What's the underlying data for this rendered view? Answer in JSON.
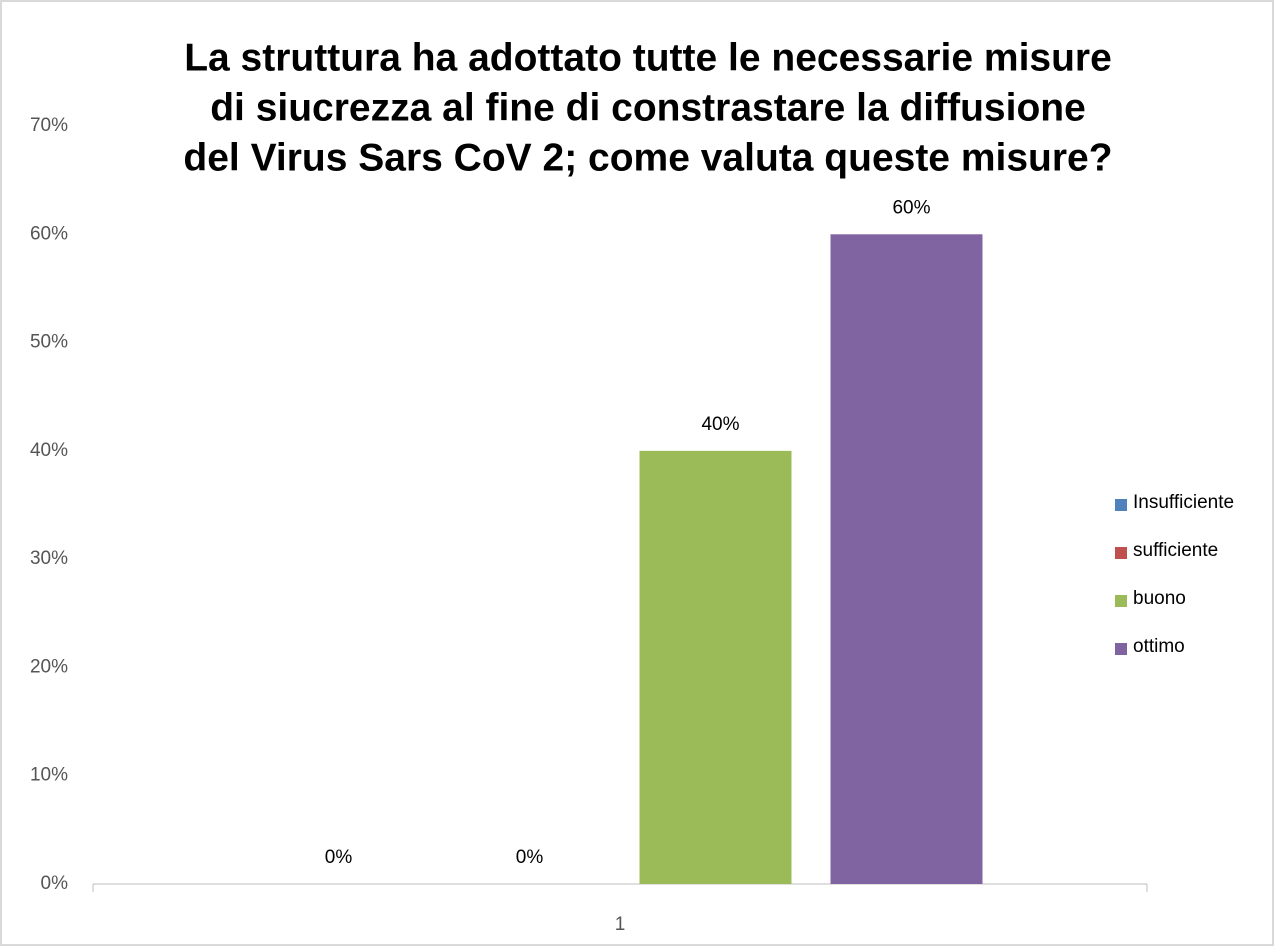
{
  "chart_data": {
    "type": "bar",
    "title": [
      "La struttura ha adottato tutte le necessarie misure",
      "di siucrezza al fine di constrastare la diffusione",
      "del Virus Sars CoV 2; come valuta queste misure?"
    ],
    "categories": [
      "1"
    ],
    "series": [
      {
        "name": "Insufficiente",
        "color": "#4f81bd",
        "values": [
          0
        ],
        "value_labels": [
          "0%"
        ]
      },
      {
        "name": "sufficiente",
        "color": "#c0504d",
        "values": [
          0
        ],
        "value_labels": [
          "0%"
        ]
      },
      {
        "name": "buono",
        "color": "#9bbb59",
        "values": [
          40
        ],
        "value_labels": [
          "40%"
        ]
      },
      {
        "name": "ottimo",
        "color": "#8064a2",
        "values": [
          60
        ],
        "value_labels": [
          "60%"
        ]
      }
    ],
    "ylim": [
      0,
      70
    ],
    "yticks": [
      {
        "value": 0,
        "label": "0%"
      },
      {
        "value": 10,
        "label": "10%"
      },
      {
        "value": 20,
        "label": "20%"
      },
      {
        "value": 30,
        "label": "30%"
      },
      {
        "value": 40,
        "label": "40%"
      },
      {
        "value": 50,
        "label": "50%"
      },
      {
        "value": 60,
        "label": "60%"
      },
      {
        "value": 70,
        "label": "70%"
      }
    ],
    "grid": false,
    "legend": "right"
  }
}
